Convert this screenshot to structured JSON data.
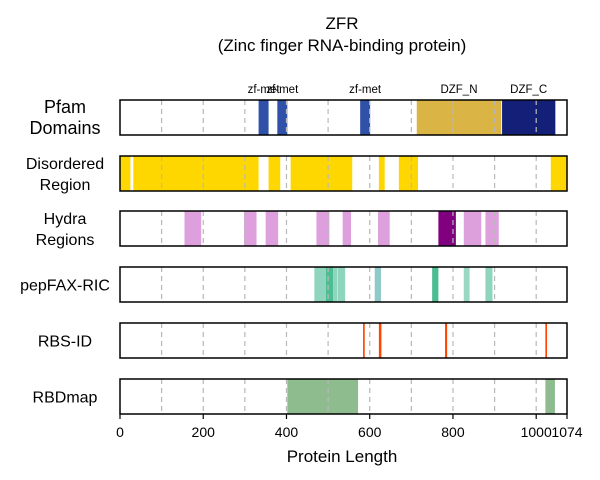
{
  "chart_data": {
    "type": "track",
    "title": "ZFR",
    "subtitle": "(Zinc finger RNA-binding protein)",
    "xlabel": "Protein Length",
    "xlim": [
      0,
      1074
    ],
    "x_ticks": [
      0,
      200,
      400,
      600,
      800,
      1000,
      1074
    ],
    "x_tick_labels": [
      "0",
      "200",
      "400",
      "600",
      "800",
      "1000",
      "1074"
    ],
    "grid_lines": [
      100,
      200,
      300,
      400,
      500,
      600,
      700,
      800,
      900,
      1000
    ],
    "tracks": [
      {
        "label_lines": [
          "Pfam",
          "Domains"
        ],
        "segments": [
          {
            "start": 333,
            "end": 357,
            "color": "#2f52a8",
            "label": "zf-met"
          },
          {
            "start": 378,
            "end": 402,
            "color": "#2f52a8",
            "label": "zf-met"
          },
          {
            "start": 577,
            "end": 601,
            "color": "#2f52a8",
            "label": "zf-met"
          },
          {
            "start": 713,
            "end": 916,
            "color": "#dab445",
            "label": "DZF_N"
          },
          {
            "start": 918,
            "end": 1046,
            "color": "#141f78",
            "label": "DZF_C"
          }
        ]
      },
      {
        "label_lines": [
          "Disordered",
          "Region"
        ],
        "segments": [
          {
            "start": 0,
            "end": 25,
            "color": "#ffd700"
          },
          {
            "start": 32,
            "end": 333,
            "color": "#ffd700"
          },
          {
            "start": 357,
            "end": 385,
            "color": "#ffd700"
          },
          {
            "start": 410,
            "end": 558,
            "color": "#ffd700"
          },
          {
            "start": 622,
            "end": 636,
            "color": "#ffd700"
          },
          {
            "start": 670,
            "end": 716,
            "color": "#ffd700"
          },
          {
            "start": 1035,
            "end": 1074,
            "color": "#ffd700"
          }
        ]
      },
      {
        "label_lines": [
          "Hydra",
          "Regions"
        ],
        "segments": [
          {
            "start": 155,
            "end": 195,
            "color": "#dda0dd"
          },
          {
            "start": 298,
            "end": 328,
            "color": "#dda0dd"
          },
          {
            "start": 350,
            "end": 380,
            "color": "#dda0dd"
          },
          {
            "start": 472,
            "end": 503,
            "color": "#dda0dd"
          },
          {
            "start": 535,
            "end": 555,
            "color": "#dda0dd"
          },
          {
            "start": 620,
            "end": 648,
            "color": "#dda0dd"
          },
          {
            "start": 765,
            "end": 807,
            "color": "#800080"
          },
          {
            "start": 826,
            "end": 868,
            "color": "#dda0dd"
          },
          {
            "start": 878,
            "end": 910,
            "color": "#dda0dd"
          }
        ]
      },
      {
        "label_lines": [
          "pepFAX-RIC"
        ],
        "segments": [
          {
            "start": 467,
            "end": 495,
            "color": "#8fd4bd"
          },
          {
            "start": 495,
            "end": 512,
            "color": "#4cbd92"
          },
          {
            "start": 512,
            "end": 522,
            "color": "#8fd4bd"
          },
          {
            "start": 523,
            "end": 541,
            "color": "#8fd4bd"
          },
          {
            "start": 612,
            "end": 627,
            "color": "#8fc9c9"
          },
          {
            "start": 750,
            "end": 765,
            "color": "#4cbd92"
          },
          {
            "start": 826,
            "end": 840,
            "color": "#9ad8c4"
          },
          {
            "start": 878,
            "end": 895,
            "color": "#8fd4bd"
          }
        ]
      },
      {
        "label_lines": [
          "RBS-ID"
        ],
        "segments": [
          {
            "start": 584,
            "end": 588,
            "color": "#ff4500"
          },
          {
            "start": 622,
            "end": 628,
            "color": "#ff4500"
          },
          {
            "start": 781,
            "end": 786,
            "color": "#ff4500"
          },
          {
            "start": 1022,
            "end": 1026,
            "color": "#ff4500"
          }
        ]
      },
      {
        "label_lines": [
          "RBDmap"
        ],
        "segments": [
          {
            "start": 402,
            "end": 572,
            "color": "#8fbc8f"
          },
          {
            "start": 1022,
            "end": 1045,
            "color": "#8fbc8f"
          }
        ]
      }
    ]
  }
}
